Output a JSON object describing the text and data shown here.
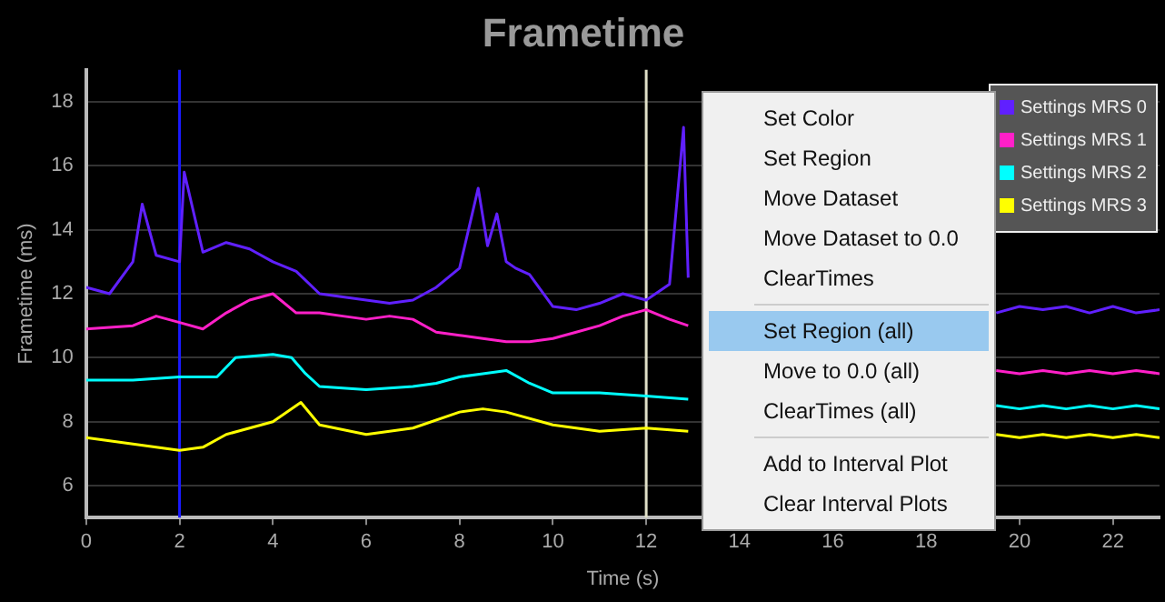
{
  "chart_data": {
    "type": "line",
    "title": "Frametime",
    "xlabel": "Time (s)",
    "ylabel": "Frametime (ms)",
    "xlim": [
      0,
      23
    ],
    "xticks": [
      0,
      2,
      4,
      6,
      8,
      10,
      12,
      14,
      16,
      18,
      20,
      22
    ],
    "ylim": [
      5,
      19
    ],
    "yticks": [
      6,
      8,
      10,
      12,
      14,
      16,
      18
    ],
    "grid": "y",
    "legend": "top right",
    "marker": "none",
    "line_style": "solid",
    "ref_lines": [
      {
        "axis": "x",
        "value": 2,
        "color": "#1a1aff"
      },
      {
        "axis": "x",
        "value": 12,
        "color": "#e0e0c8"
      }
    ],
    "annotations": [
      "Set Color",
      "Set Region",
      "Move Dataset",
      "Move Dataset to 0.0",
      "ClearTimes",
      "Set Region (all)",
      "Move to 0.0 (all)",
      "ClearTimes (all)",
      "Add to Interval Plot",
      "Clear Interval Plots"
    ],
    "series": [
      {
        "name": "Settings MRS 0",
        "color": "#6020ff",
        "x": [
          0,
          0.5,
          1,
          1.2,
          1.5,
          2,
          2.1,
          2.5,
          3,
          3.5,
          4,
          4.5,
          5,
          5.5,
          6,
          6.5,
          7,
          7.5,
          8,
          8.4,
          8.6,
          8.8,
          9,
          9.2,
          9.5,
          10,
          10.5,
          11,
          11.5,
          12,
          12.5,
          12.8,
          12.9,
          16,
          19.5,
          20,
          20.5,
          21,
          21.5,
          22,
          22.5,
          23
        ],
        "values": [
          12.2,
          12.0,
          13.0,
          14.8,
          13.2,
          13.0,
          15.8,
          13.3,
          13.6,
          13.4,
          13.0,
          12.7,
          12.0,
          11.9,
          11.8,
          11.7,
          11.8,
          12.2,
          12.8,
          15.3,
          13.5,
          14.5,
          13.0,
          12.8,
          12.6,
          11.6,
          11.5,
          11.7,
          12.0,
          11.8,
          12.3,
          17.2,
          12.5,
          null,
          11.4,
          11.6,
          11.5,
          11.6,
          11.4,
          11.6,
          11.4,
          11.5
        ]
      },
      {
        "name": "Settings MRS 1",
        "color": "#ff20c8",
        "x": [
          0,
          1,
          1.5,
          2,
          2.5,
          3,
          3.5,
          4,
          4.5,
          5,
          5.5,
          6,
          6.5,
          7,
          7.5,
          8,
          8.5,
          9,
          9.5,
          10,
          10.5,
          11,
          11.5,
          12,
          12.5,
          12.9,
          16,
          19.5,
          20,
          20.5,
          21,
          21.5,
          22,
          22.5,
          23
        ],
        "values": [
          10.9,
          11.0,
          11.3,
          11.1,
          10.9,
          11.4,
          11.8,
          12.0,
          11.4,
          11.4,
          11.3,
          11.2,
          11.3,
          11.2,
          10.8,
          10.7,
          10.6,
          10.5,
          10.5,
          10.6,
          10.8,
          11.0,
          11.3,
          11.5,
          11.2,
          11.0,
          null,
          9.6,
          9.5,
          9.6,
          9.5,
          9.6,
          9.5,
          9.6,
          9.5
        ]
      },
      {
        "name": "Settings MRS 2",
        "color": "#00ffff",
        "x": [
          0,
          1,
          2,
          2.8,
          3.2,
          4,
          4.4,
          4.7,
          5,
          6,
          7,
          7.5,
          8,
          8.5,
          9,
          9.5,
          10,
          11,
          12,
          12.9,
          16,
          19.5,
          20,
          20.5,
          21,
          21.5,
          22,
          22.5,
          23
        ],
        "values": [
          9.3,
          9.3,
          9.4,
          9.4,
          10.0,
          10.1,
          10.0,
          9.5,
          9.1,
          9.0,
          9.1,
          9.2,
          9.4,
          9.5,
          9.6,
          9.2,
          8.9,
          8.9,
          8.8,
          8.7,
          null,
          8.5,
          8.4,
          8.5,
          8.4,
          8.5,
          8.4,
          8.5,
          8.4
        ]
      },
      {
        "name": "Settings MRS 3",
        "color": "#ffff00",
        "x": [
          0,
          1,
          2,
          2.5,
          3,
          4,
          4.6,
          5,
          6,
          7,
          8,
          8.5,
          9,
          10,
          11,
          12,
          12.9,
          16,
          19.5,
          20,
          20.5,
          21,
          21.5,
          22,
          22.5,
          23
        ],
        "values": [
          7.5,
          7.3,
          7.1,
          7.2,
          7.6,
          8.0,
          8.6,
          7.9,
          7.6,
          7.8,
          8.3,
          8.4,
          8.3,
          7.9,
          7.7,
          7.8,
          7.7,
          null,
          7.6,
          7.5,
          7.6,
          7.5,
          7.6,
          7.5,
          7.6,
          7.5
        ]
      }
    ]
  }
}
